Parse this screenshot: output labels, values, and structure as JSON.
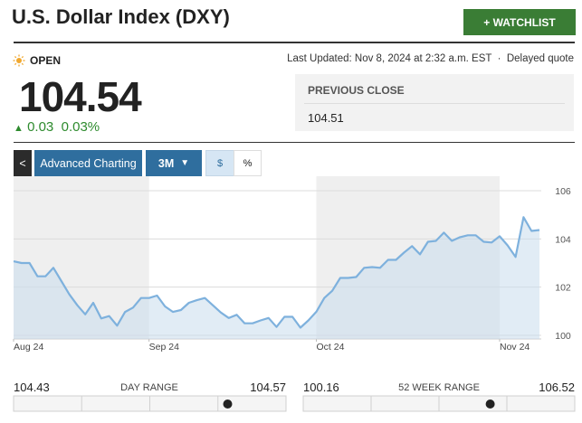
{
  "header": {
    "title": "U.S. Dollar Index (DXY)",
    "watchlist_button": "+ WATCHLIST"
  },
  "quote": {
    "status": "OPEN",
    "last_updated": "Last Updated: Nov 8, 2024 at 2:32 a.m. EST",
    "delayed": "Delayed quote",
    "price": 104.54,
    "change": 0.03,
    "change_percent": "0.03%",
    "previous_close_label": "PREVIOUS CLOSE",
    "previous_close": 104.51
  },
  "toolbar": {
    "advanced_charting": "Advanced Charting",
    "range": "3M",
    "dollar": "$",
    "percent": "%"
  },
  "chart_data": {
    "type": "line",
    "color": "#7eb1dd",
    "area_color": "#c9dcec",
    "grid": true,
    "categories": [
      "Aug 24",
      null,
      null,
      null,
      null,
      null,
      null,
      null,
      null,
      null,
      null,
      null,
      null,
      null,
      null,
      null,
      null,
      "Sep 24",
      null,
      null,
      null,
      null,
      null,
      null,
      null,
      null,
      null,
      null,
      null,
      null,
      null,
      null,
      null,
      null,
      null,
      null,
      null,
      null,
      "Oct 24",
      null,
      null,
      null,
      null,
      null,
      null,
      null,
      null,
      null,
      null,
      null,
      null,
      null,
      null,
      null,
      null,
      null,
      null,
      null,
      null,
      null,
      null,
      "Nov 24",
      null,
      null,
      null,
      null,
      null
    ],
    "values": [
      103.07,
      103.0,
      103.0,
      102.45,
      102.45,
      102.8,
      102.25,
      101.7,
      101.25,
      100.87,
      101.35,
      100.7,
      100.8,
      100.4,
      100.97,
      101.15,
      101.55,
      101.55,
      101.65,
      101.2,
      100.97,
      101.05,
      101.35,
      101.46,
      101.55,
      101.25,
      100.95,
      100.72,
      100.85,
      100.5,
      100.5,
      100.62,
      100.72,
      100.35,
      100.77,
      100.77,
      100.32,
      100.62,
      100.98,
      101.55,
      101.85,
      102.38,
      102.38,
      102.42,
      102.8,
      102.83,
      102.8,
      103.13,
      103.13,
      103.43,
      103.7,
      103.36,
      103.88,
      103.92,
      104.26,
      103.92,
      104.07,
      104.15,
      104.15,
      103.88,
      103.85,
      104.11,
      103.73,
      103.25,
      104.9,
      104.33,
      104.37
    ],
    "ylim": [
      99.85,
      106.6
    ],
    "yticks": [
      100,
      102,
      104,
      106
    ]
  },
  "ranges": [
    {
      "low": 104.43,
      "label": "DAY RANGE",
      "high": 104.57
    },
    {
      "low": 100.16,
      "label": "52 WEEK RANGE",
      "high": 106.52
    }
  ]
}
